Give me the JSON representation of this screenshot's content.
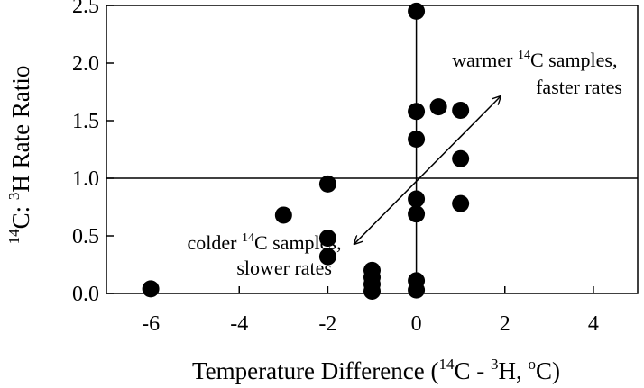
{
  "chart_data": {
    "type": "scatter",
    "xlabel": {
      "pre": "Temperature Difference (",
      "sup1": "14",
      "mid1": "C - ",
      "sup2": "3",
      "mid2": "H, ",
      "sup3": "o",
      "post": "C)"
    },
    "ylabel": {
      "sup1": "14",
      "mid1": "C: ",
      "sup2": "3",
      "post": "H Rate Ratio"
    },
    "xlim": [
      -7,
      5
    ],
    "ylim": [
      0,
      2.5
    ],
    "xticks": [
      -6,
      -4,
      -2,
      0,
      2,
      4
    ],
    "xtick_labels": [
      "-6",
      "-4",
      "-2",
      "0",
      "2",
      "4"
    ],
    "yticks": [
      0,
      0.5,
      1,
      1.5,
      2,
      2.5
    ],
    "ytick_labels": [
      "0.0",
      "0.5",
      "1.0",
      "1.5",
      "2.0",
      "2.5"
    ],
    "reference_lines": {
      "y": 1.0,
      "x": 0
    },
    "grid": false,
    "points": [
      {
        "x": -6,
        "y": 0.04
      },
      {
        "x": -3,
        "y": 0.68
      },
      {
        "x": -2,
        "y": 0.95
      },
      {
        "x": -2,
        "y": 0.48
      },
      {
        "x": -2,
        "y": 0.32
      },
      {
        "x": -1,
        "y": 0.2
      },
      {
        "x": -1,
        "y": 0.14
      },
      {
        "x": -1,
        "y": 0.08
      },
      {
        "x": -1,
        "y": 0.02
      },
      {
        "x": 0,
        "y": 2.45
      },
      {
        "x": 0,
        "y": 1.58
      },
      {
        "x": 0,
        "y": 1.34
      },
      {
        "x": 0,
        "y": 0.82
      },
      {
        "x": 0,
        "y": 0.69
      },
      {
        "x": 0,
        "y": 0.11
      },
      {
        "x": 0,
        "y": 0.03
      },
      {
        "x": 0.5,
        "y": 1.62
      },
      {
        "x": 1,
        "y": 1.59
      },
      {
        "x": 1,
        "y": 1.17
      },
      {
        "x": 1,
        "y": 0.78
      }
    ],
    "arrow": {
      "from": [
        -1.4,
        0.43
      ],
      "to": [
        1.9,
        1.71
      ]
    },
    "annotations": {
      "warm": {
        "line1_pre": "warmer ",
        "line1_sup": "14",
        "line1_post": "C samples,",
        "line2": "faster rates"
      },
      "cold": {
        "line1_pre": "colder ",
        "line1_sup": "14",
        "line1_post": "C samples,",
        "line2": "slower rates"
      }
    }
  }
}
